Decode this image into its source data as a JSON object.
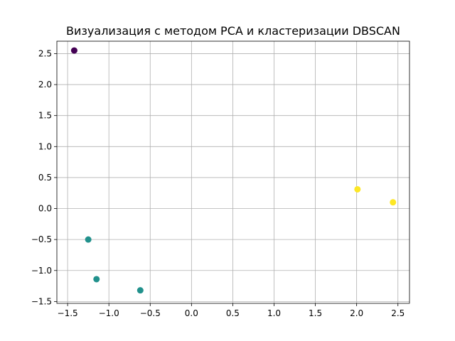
{
  "chart_data": {
    "type": "scatter",
    "title": "Визуализация с методом PCA и кластеризации DBSCAN",
    "xlabel": "",
    "ylabel": "",
    "xlim": [
      -1.63,
      2.64
    ],
    "ylim": [
      -1.53,
      2.7
    ],
    "grid": true,
    "x_ticks": [
      -1.5,
      -1.0,
      -0.5,
      0.0,
      0.5,
      1.0,
      1.5,
      2.0,
      2.5
    ],
    "x_tick_labels": [
      "−1.5",
      "−1.0",
      "−0.5",
      "0.0",
      "0.5",
      "1.0",
      "1.5",
      "2.0",
      "2.5"
    ],
    "y_ticks": [
      -1.5,
      -1.0,
      -0.5,
      0.0,
      0.5,
      1.0,
      1.5,
      2.0,
      2.5
    ],
    "y_tick_labels": [
      "−1.5",
      "−1.0",
      "−0.5",
      "0.0",
      "0.5",
      "1.0",
      "1.5",
      "2.0",
      "2.5"
    ],
    "cluster_colors": {
      "-1": "#440154",
      "0": "#21918c",
      "1": "#fde725"
    },
    "points": [
      {
        "x": -1.42,
        "y": 2.55,
        "cluster": -1
      },
      {
        "x": -1.25,
        "y": -0.5,
        "cluster": 0
      },
      {
        "x": -1.15,
        "y": -1.14,
        "cluster": 0
      },
      {
        "x": -0.62,
        "y": -1.32,
        "cluster": 0
      },
      {
        "x": 2.01,
        "y": 0.31,
        "cluster": 1
      },
      {
        "x": 2.44,
        "y": 0.1,
        "cluster": 1
      }
    ]
  }
}
